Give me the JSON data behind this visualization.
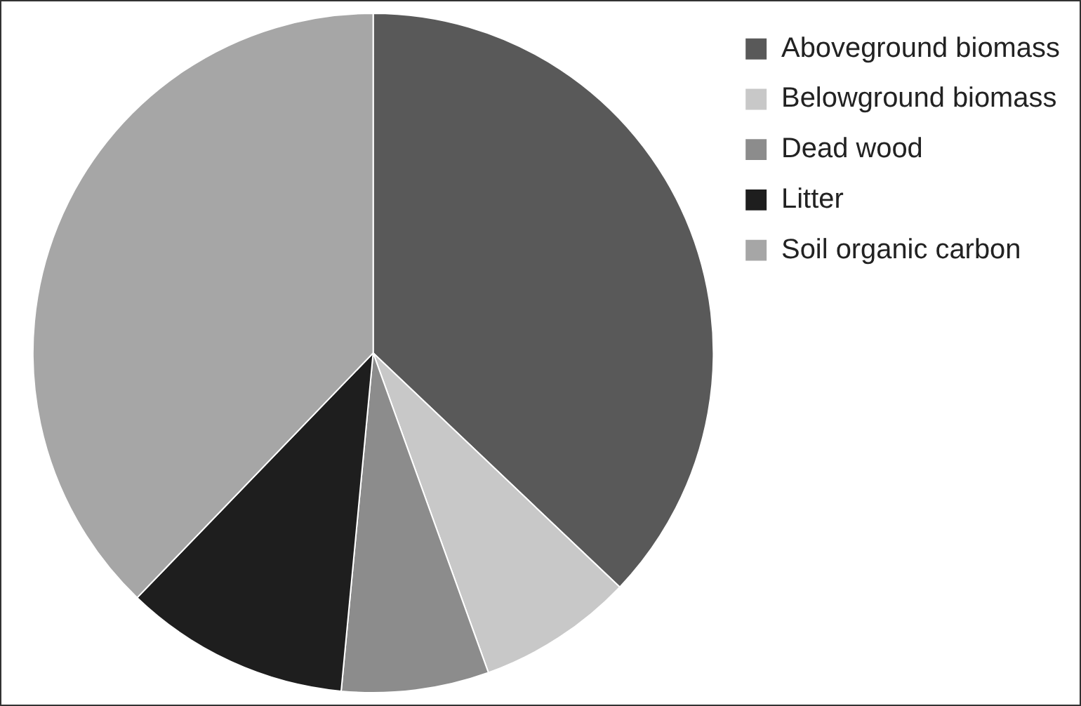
{
  "chart_data": {
    "type": "pie",
    "categories": [
      "Aboveground biomass",
      "Belowground biomass",
      "Dead wood",
      "Litter",
      "Soil organic carbon"
    ],
    "values": [
      37.1,
      7.4,
      7.0,
      10.7,
      37.8
    ],
    "colors": [
      "#595959",
      "#c8c8c8",
      "#8c8c8c",
      "#1e1e1e",
      "#a6a6a6"
    ],
    "legend": "top right"
  }
}
